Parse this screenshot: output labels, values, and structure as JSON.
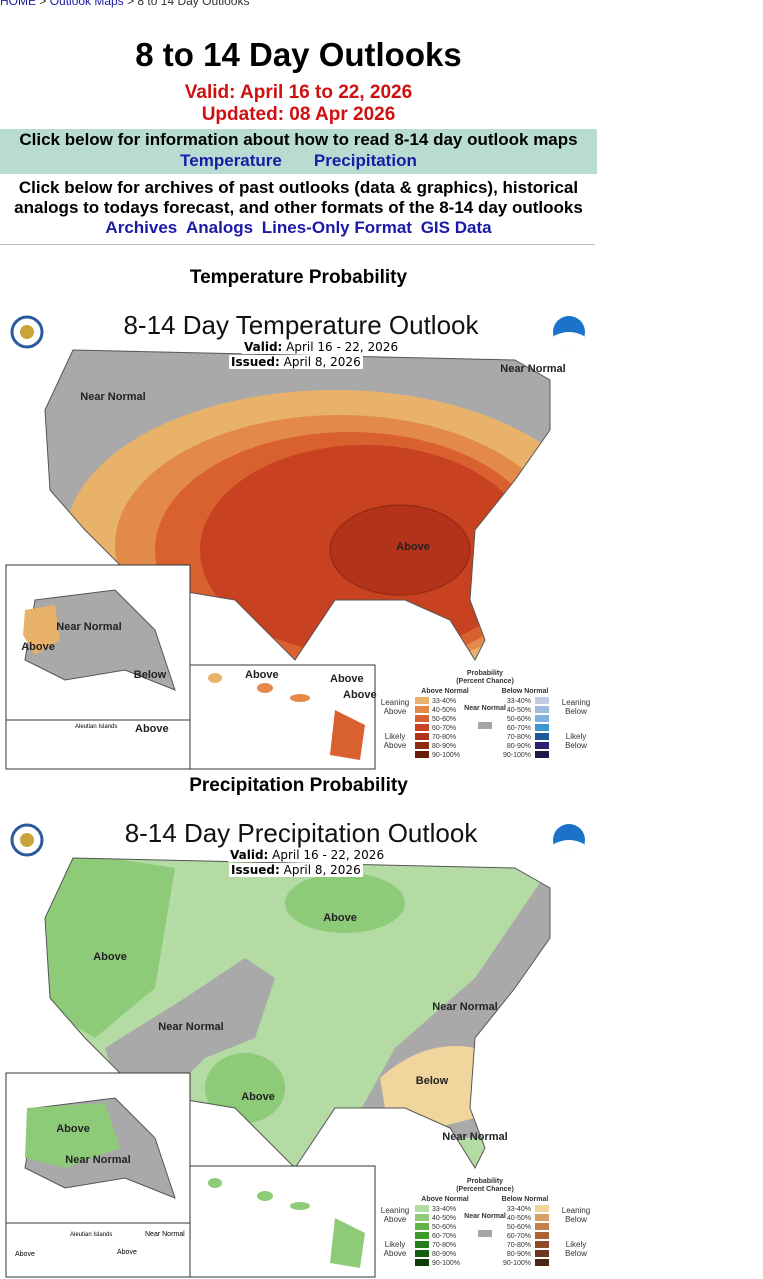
{
  "breadcrumb": {
    "home": "HOME",
    "maps": "Outlook Maps",
    "current": "8 to 14 Day Outlooks",
    "sep": " > "
  },
  "title": "8 to 14 Day Outlooks",
  "valid": "Valid: April 16 to 22, 2026",
  "updated": "Updated: 08 Apr 2026",
  "info": {
    "text": "Click below for information about how to read 8-14 day outlook maps",
    "links": [
      "Temperature",
      "Precipitation"
    ]
  },
  "archives": {
    "text": "Click below for archives of past outlooks (data & graphics), historical analogs to todays forecast, and other formats of the 8-14 day outlooks",
    "links": [
      "Archives",
      "Analogs",
      "Lines-Only Format",
      "GIS Data"
    ]
  },
  "temp": {
    "section": "Temperature Probability",
    "map_title": "8-14 Day Temperature Outlook",
    "valid_label": "Valid:",
    "valid": "April 16 - 22, 2026",
    "issued_label": "Issued:",
    "issued": "April 8, 2026",
    "labels": [
      "Near Normal",
      "Near Normal",
      "Above",
      "Near Normal",
      "Above",
      "Below",
      "Above",
      "Above",
      "Above",
      "Above"
    ],
    "aleutian": "Aleutian Islands",
    "colors": [
      "#e8b26a",
      "#e38a4a",
      "#d9602f",
      "#c84120",
      "#b3321a",
      "#8c2a12",
      "#6a1c0a"
    ]
  },
  "precip": {
    "section": "Precipitation Probability",
    "map_title": "8-14 Day Precipitation Outlook",
    "valid_label": "Valid:",
    "valid": "April 16 - 22, 2026",
    "issued_label": "Issued:",
    "issued": "April 8, 2026",
    "labels": [
      "Above",
      "Above",
      "Near Normal",
      "Above",
      "Near Normal",
      "Below",
      "Near Normal",
      "Above",
      "Near Normal",
      "Above",
      "Above",
      "Near Normal"
    ],
    "aleutian": "Aleutian Islands",
    "colors": [
      "#b3dba3",
      "#8ecb78",
      "#5fb34a",
      "#3a9a2a",
      "#237d19",
      "#155d10",
      "#0c3d08"
    ]
  },
  "legend": {
    "title": "Probability",
    "subtitle": "(Percent Chance)",
    "above": "Above Normal",
    "below": "Below Normal",
    "near": "Near Normal",
    "leaning_above": "Leaning Above",
    "likely_above": "Likely Above",
    "leaning_below": "Leaning Below",
    "likely_below": "Likely Below",
    "ranges": [
      "33-40%",
      "40-50%",
      "50-60%",
      "60-70%",
      "70-80%",
      "80-90%",
      "90-100%"
    ],
    "temp_below_colors": [
      "#c3cbe3",
      "#a0bcdc",
      "#7fb2de",
      "#3f95d0",
      "#1b5a96",
      "#2c2170",
      "#1e1a48"
    ],
    "precip_below_colors": [
      "#f2d59a",
      "#d9a066",
      "#c2804a",
      "#a86234",
      "#8e4a2a",
      "#6e3520",
      "#4a2516"
    ],
    "near_color": "#a6a6a6"
  }
}
